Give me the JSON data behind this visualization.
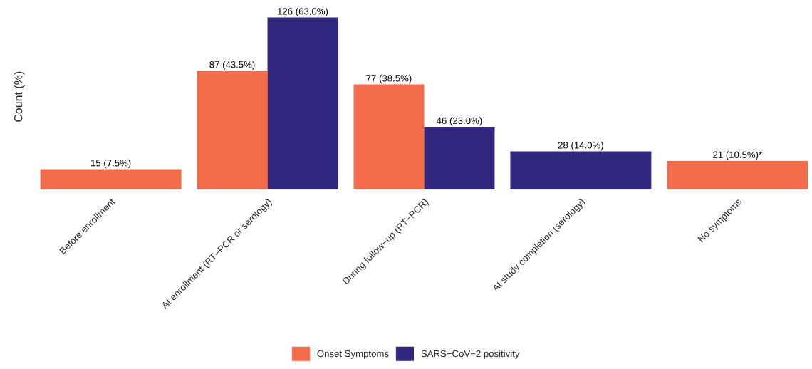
{
  "chart_data": {
    "type": "bar",
    "ylabel": "Count (%)",
    "categories": [
      "Before enrollment",
      "At enrollment (RT−PCR or serology)",
      "During follow−up (RT−PCR)",
      "At study completion (serology)",
      "No symptoms"
    ],
    "series": [
      {
        "name": "Onset Symptoms",
        "color": "#f26b4b",
        "values": [
          15,
          87,
          77,
          null,
          21
        ],
        "value_labels": [
          "15 (7.5%)",
          "87 (43.5%)",
          "77 (38.5%)",
          null,
          "21 (10.5%)*"
        ]
      },
      {
        "name": "SARS−CoV−2 positivity",
        "color": "#30297f",
        "values": [
          null,
          126,
          46,
          28,
          null
        ],
        "value_labels": [
          null,
          "126 (63.0%)",
          "46 (23.0%)",
          "28 (14.0%)",
          null
        ]
      }
    ],
    "legend": "bottom",
    "grid": false
  }
}
